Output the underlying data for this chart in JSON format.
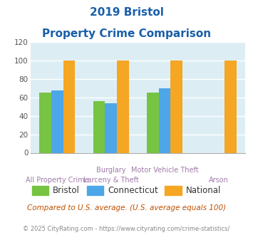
{
  "title_line1": "2019 Bristol",
  "title_line2": "Property Crime Comparison",
  "categories_top": [
    "",
    "Burglary",
    "Motor Vehicle Theft",
    ""
  ],
  "categories_bot": [
    "All Property Crime",
    "Larceny & Theft",
    "",
    "Arson"
  ],
  "bristol": [
    65,
    56,
    65,
    0
  ],
  "connecticut": [
    68,
    54,
    70,
    0
  ],
  "national": [
    100,
    100,
    100,
    100
  ],
  "bristol_color": "#76c442",
  "connecticut_color": "#4da6e8",
  "national_color": "#f5a623",
  "bg_color": "#dceef4",
  "title_color": "#1a5fa8",
  "subtitle_note": "Compared to U.S. average. (U.S. average equals 100)",
  "copyright": "© 2025 CityRating.com - https://www.cityrating.com/crime-statistics/",
  "ylim": [
    0,
    120
  ],
  "yticks": [
    0,
    20,
    40,
    60,
    80,
    100,
    120
  ],
  "grid_color": "#ffffff",
  "axis_label_color": "#a07aaa",
  "note_color": "#c05000",
  "copyright_color": "#888888",
  "legend_label_color": "#333333"
}
